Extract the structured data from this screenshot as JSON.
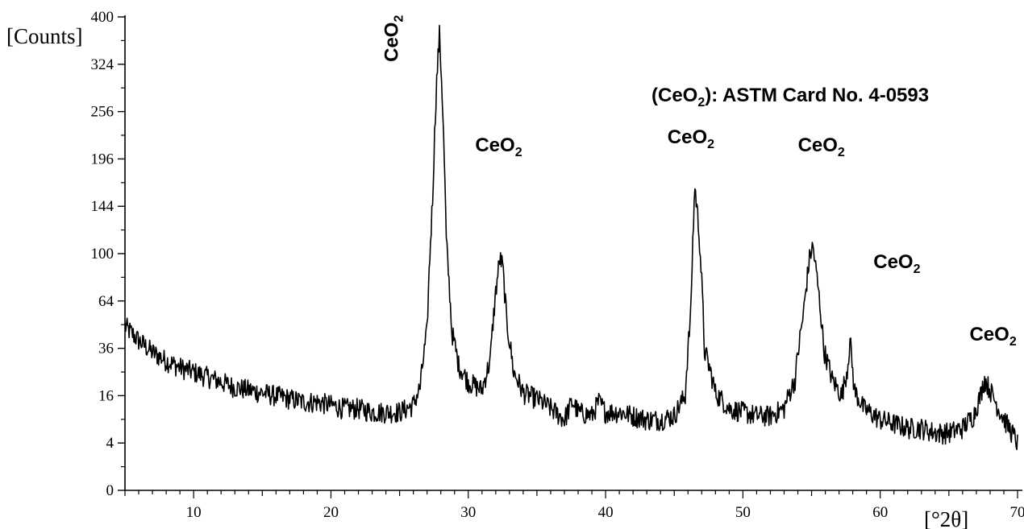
{
  "chart_data": {
    "type": "line",
    "title": "",
    "xlabel": "[°2θ]",
    "ylabel": "[Counts]",
    "xlim": [
      5,
      70
    ],
    "ylim": [
      0,
      400
    ],
    "y_scale": "sqrt",
    "x_ticks": [
      10,
      20,
      30,
      40,
      50,
      60,
      70
    ],
    "x_tick_labels": [
      "10",
      "20",
      "30",
      "40",
      "50",
      "60",
      "70"
    ],
    "y_ticks": [
      0,
      4,
      16,
      36,
      64,
      100,
      144,
      196,
      256,
      324,
      400
    ],
    "y_tick_labels": [
      "0",
      "4",
      "16",
      "36",
      "64",
      "100",
      "144",
      "196",
      "256",
      "324",
      "400"
    ],
    "card_note": "(CeO2): ASTM Card No. 4-0593",
    "card_note_parts": [
      "(CeO",
      "2",
      "): ASTM Card No. 4-0593"
    ],
    "peak_labels": [
      {
        "text": "CeO",
        "sub": "2",
        "x": 27.8,
        "counts": 340,
        "orientation": "vertical"
      },
      {
        "text": "CeO",
        "sub": "2",
        "x": 32.5,
        "counts": 205,
        "orientation": "horizontal"
      },
      {
        "text": "CeO",
        "sub": "2",
        "x": 46.5,
        "counts": 215,
        "orientation": "horizontal"
      },
      {
        "text": "CeO",
        "sub": "2",
        "x": 56.0,
        "counts": 205,
        "orientation": "horizontal"
      },
      {
        "text": "CeO",
        "sub": "2",
        "x": 61.5,
        "counts": 88,
        "orientation": "horizontal"
      },
      {
        "text": "CeO",
        "sub": "2",
        "x": 68.5,
        "counts": 40,
        "orientation": "horizontal"
      }
    ],
    "series": [
      {
        "x": [
          5.0,
          6,
          7,
          8,
          9,
          10,
          11,
          12,
          13,
          14,
          15,
          16,
          17,
          18,
          19,
          20,
          21,
          22,
          23,
          24,
          25,
          26,
          26.5,
          27.0,
          27.4,
          27.7,
          27.9,
          28.1,
          28.4,
          28.8,
          29.3,
          30,
          31,
          31.6,
          32.0,
          32.3,
          32.5,
          32.8,
          33.3,
          34,
          35,
          36,
          37,
          37.6,
          38,
          39,
          39.5,
          40,
          41,
          42,
          43,
          44,
          45,
          45.8,
          46.2,
          46.5,
          46.8,
          47.2,
          48,
          49,
          50,
          51,
          52,
          53,
          53.8,
          54.4,
          54.9,
          55.1,
          55.4,
          55.9,
          56.5,
          57.2,
          57.6,
          57.8,
          58.1,
          58.8,
          60,
          61,
          62,
          63,
          64,
          65,
          66,
          66.8,
          67.3,
          67.6,
          68.0,
          68.6,
          69.2,
          70
        ],
        "y": [
          48,
          40,
          34,
          30,
          27,
          25,
          23,
          21,
          19,
          18,
          17,
          16,
          15,
          14,
          14,
          13,
          12,
          12,
          11,
          11,
          11,
          13,
          19,
          45,
          150,
          300,
          370,
          280,
          110,
          45,
          28,
          21,
          18,
          30,
          70,
          96,
          90,
          50,
          25,
          17,
          15,
          12,
          9,
          14,
          11,
          10,
          14,
          11,
          11,
          10,
          9,
          9,
          10,
          16,
          55,
          165,
          120,
          35,
          17,
          12,
          11,
          10,
          10,
          12,
          22,
          55,
          100,
          106,
          80,
          35,
          22,
          16,
          26,
          40,
          18,
          12,
          9,
          8,
          7,
          7,
          6,
          6,
          7,
          10,
          16,
          22,
          18,
          12,
          8,
          4
        ]
      }
    ]
  }
}
